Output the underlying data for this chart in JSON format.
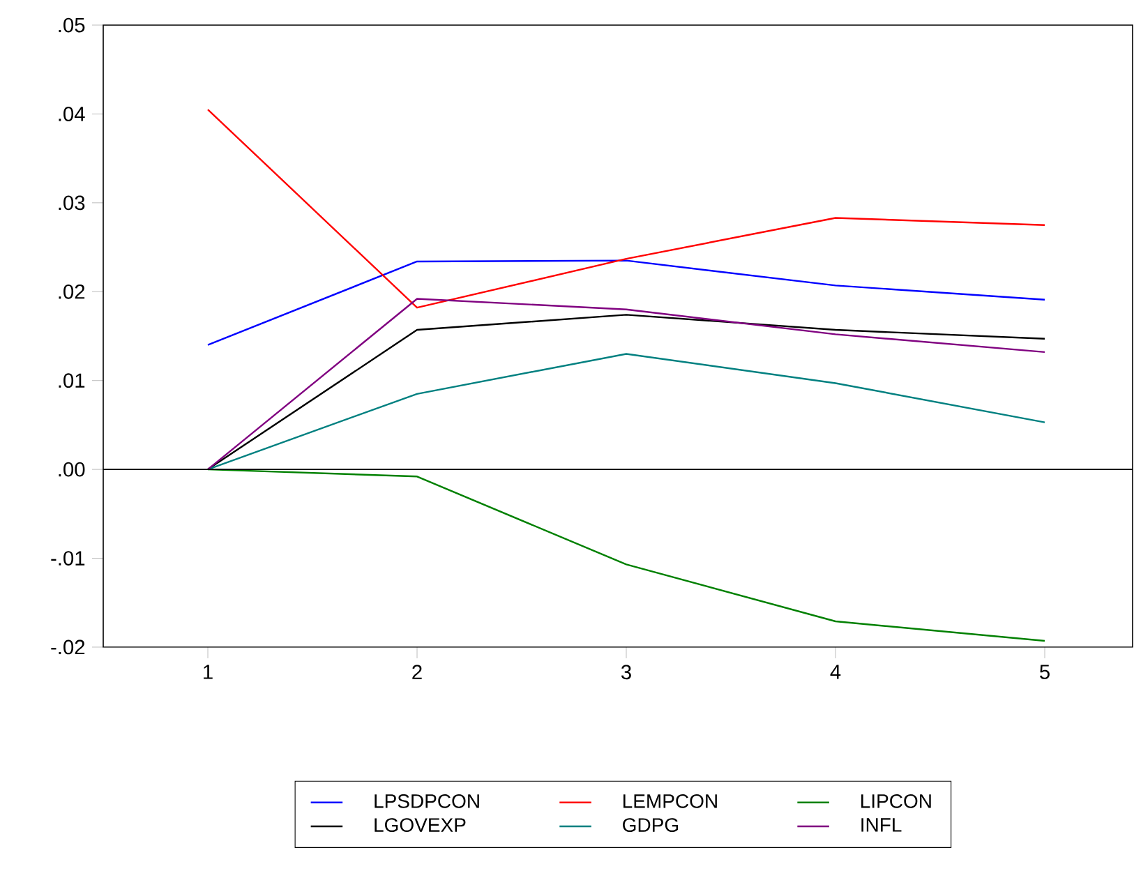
{
  "chart_data": {
    "type": "line",
    "x": [
      1,
      2,
      3,
      4,
      5
    ],
    "xlim": [
      0.5,
      5.42
    ],
    "xticks": [
      1,
      2,
      3,
      4,
      5
    ],
    "ylim": [
      -0.02,
      0.05
    ],
    "yticks": [
      {
        "value": -0.02,
        "label": "-.02"
      },
      {
        "value": -0.01,
        "label": "-.01"
      },
      {
        "value": 0,
        "label": ".00"
      },
      {
        "value": 0.01,
        "label": ".01"
      },
      {
        "value": 0.02,
        "label": ".02"
      },
      {
        "value": 0.03,
        "label": ".03"
      },
      {
        "value": 0.04,
        "label": ".04"
      },
      {
        "value": 0.05,
        "label": ".05"
      }
    ],
    "ref_lines": [
      {
        "axis": "y",
        "value": 0,
        "color": "#000000"
      }
    ],
    "legend": "bottom",
    "series": [
      {
        "name": "LPSDPCON",
        "color": "#0000ff",
        "values": [
          0.014,
          0.0234,
          0.0235,
          0.0207,
          0.0191
        ]
      },
      {
        "name": "LEMPCON",
        "color": "#ff0000",
        "values": [
          0.0405,
          0.0182,
          0.0237,
          0.0283,
          0.0275
        ]
      },
      {
        "name": "LIPCON",
        "color": "#008000",
        "values": [
          0,
          -0.0008,
          -0.0107,
          -0.0171,
          -0.0193
        ]
      },
      {
        "name": "LGOVEXP",
        "color": "#000000",
        "values": [
          0,
          0.0157,
          0.0174,
          0.0157,
          0.0147
        ]
      },
      {
        "name": "GDPG",
        "color": "#008080",
        "values": [
          0,
          0.0085,
          0.013,
          0.0097,
          0.0053
        ]
      },
      {
        "name": "INFL",
        "color": "#800080",
        "values": [
          0,
          0.0192,
          0.018,
          0.0152,
          0.0132
        ]
      }
    ]
  }
}
